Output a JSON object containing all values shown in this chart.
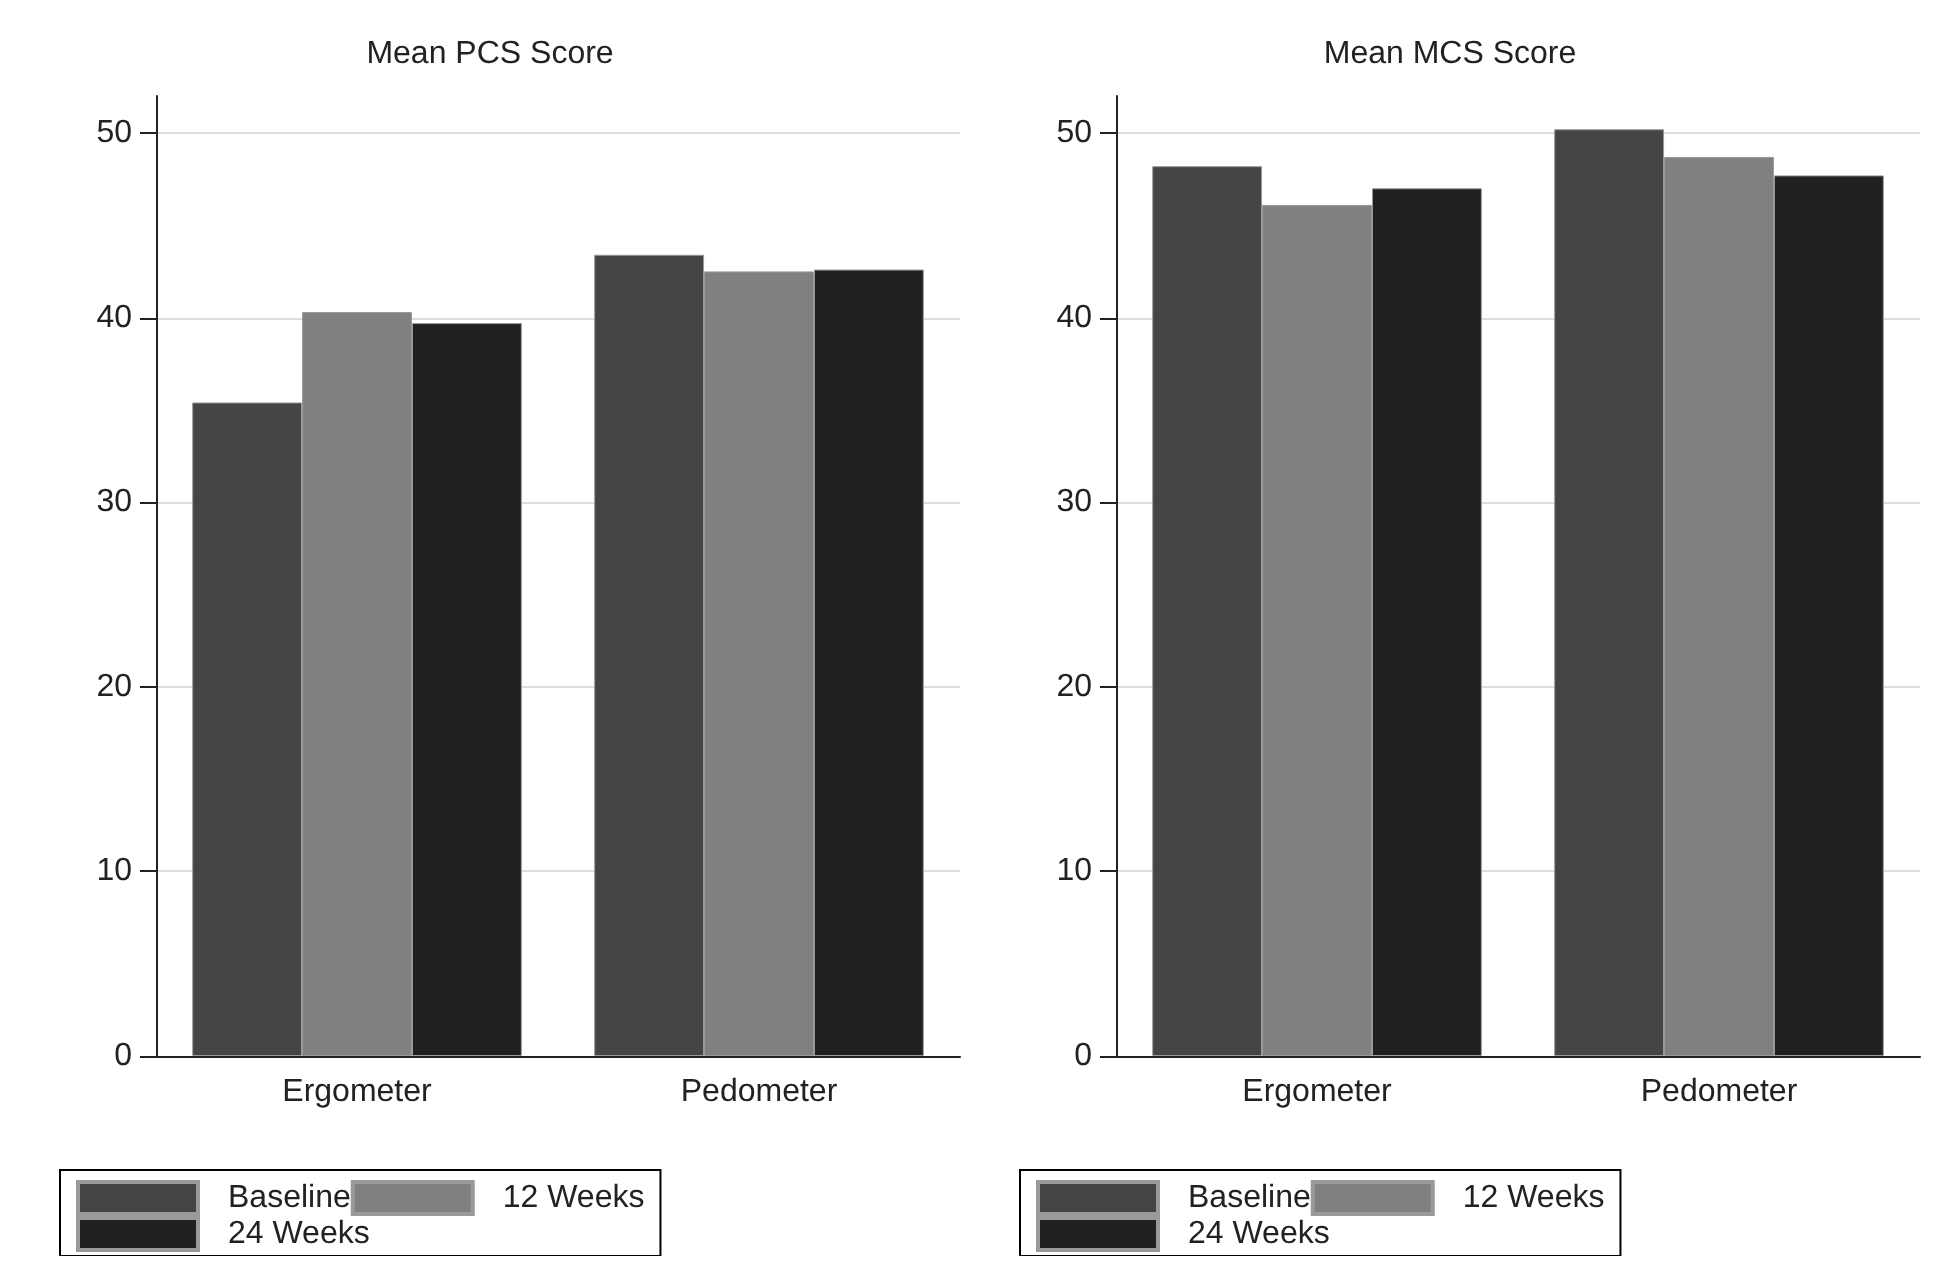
{
  "chart_data": [
    {
      "type": "bar",
      "title": "Mean PCS Score",
      "categories": [
        "Ergometer",
        "Pedometer"
      ],
      "series": [
        {
          "name": "Baseline",
          "color": "#454545",
          "values": [
            35.4,
            43.4
          ]
        },
        {
          "name": "12 Weeks",
          "color": "#808080",
          "values": [
            40.3,
            42.5
          ]
        },
        {
          "name": "24 Weeks",
          "color": "#202020",
          "values": [
            39.7,
            42.6
          ]
        }
      ],
      "ylim": [
        0,
        52
      ],
      "yticks": [
        0,
        10,
        20,
        30,
        40,
        50
      ],
      "grid": "y",
      "legend": "bottom"
    },
    {
      "type": "bar",
      "title": "Mean MCS Score",
      "categories": [
        "Ergometer",
        "Pedometer"
      ],
      "series": [
        {
          "name": "Baseline",
          "color": "#454545",
          "values": [
            48.2,
            50.2
          ]
        },
        {
          "name": "12 Weeks",
          "color": "#808080",
          "values": [
            46.1,
            48.7
          ]
        },
        {
          "name": "24 Weeks",
          "color": "#202020",
          "values": [
            47.0,
            47.7
          ]
        }
      ],
      "ylim": [
        0,
        52
      ],
      "yticks": [
        0,
        10,
        20,
        30,
        40,
        50
      ],
      "grid": "y",
      "legend": "bottom"
    }
  ]
}
